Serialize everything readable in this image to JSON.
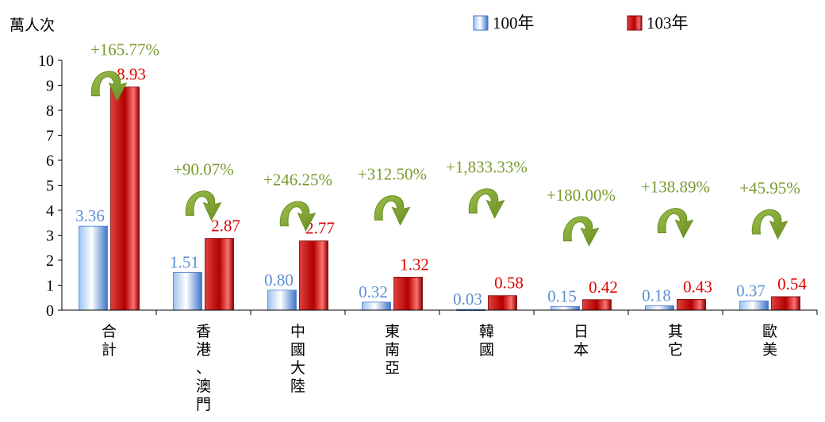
{
  "chart_data": {
    "type": "bar",
    "unit_label": "萬人次",
    "categories": [
      "合計",
      "香港、澳門",
      "中國大陸",
      "東南亞",
      "韓國",
      "日本",
      "其它",
      "歐美"
    ],
    "series": [
      {
        "name": "100年",
        "values": [
          3.36,
          1.51,
          0.8,
          0.32,
          0.03,
          0.15,
          0.18,
          0.37
        ],
        "labels": [
          "3.36",
          "1.51",
          "0.80",
          "0.32",
          "0.03",
          "0.15",
          "0.18",
          "0.37"
        ],
        "color": "#5b8fd4"
      },
      {
        "name": "103年",
        "values": [
          8.93,
          2.87,
          2.77,
          1.32,
          0.58,
          0.42,
          0.43,
          0.54
        ],
        "labels": [
          "8.93",
          "2.87",
          "2.77",
          "1.32",
          "0.58",
          "0.42",
          "0.43",
          "0.54"
        ],
        "color": "#d01818"
      }
    ],
    "growth_labels": [
      "+165.77%",
      "+90.07%",
      "+246.25%",
      "+312.50%",
      "+1,833.33%",
      "+180.00%",
      "+138.89%",
      "+45.95%"
    ],
    "growth_color": "#7a9a2e",
    "ylim": [
      0,
      10
    ],
    "yticks": [
      "0",
      "1",
      "2",
      "3",
      "4",
      "5",
      "6",
      "7",
      "8",
      "9",
      "10"
    ],
    "grid": false,
    "legend_position": "top-right"
  }
}
